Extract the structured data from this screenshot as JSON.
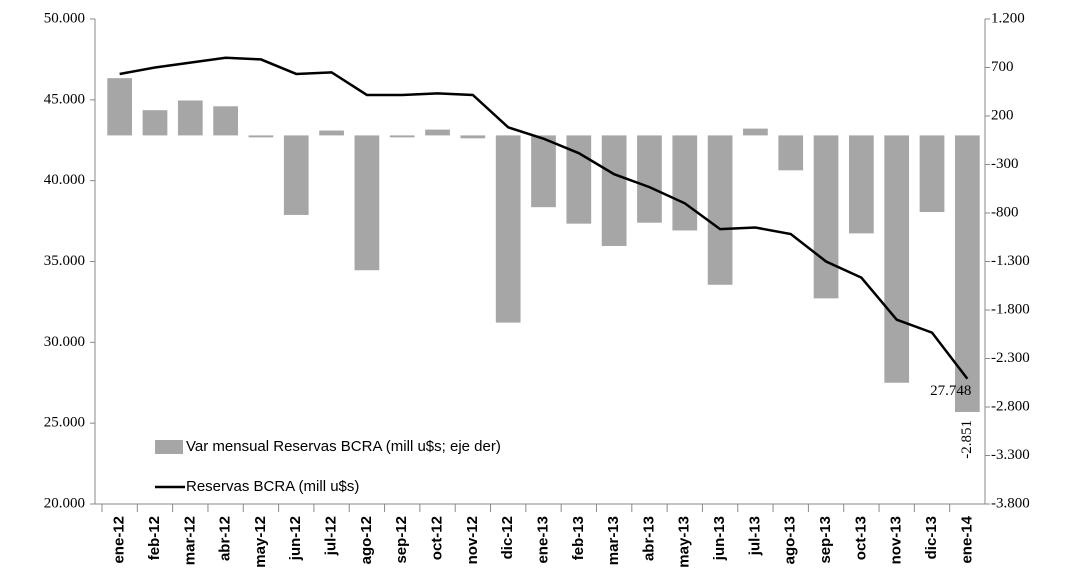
{
  "chart_data": {
    "type": "combo",
    "categories": [
      "ene-12",
      "feb-12",
      "mar-12",
      "abr-12",
      "may-12",
      "jun-12",
      "jul-12",
      "ago-12",
      "sep-12",
      "oct-12",
      "nov-12",
      "dic-12",
      "ene-13",
      "feb-13",
      "mar-13",
      "abr-13",
      "may-13",
      "jun-13",
      "jul-13",
      "ago-13",
      "sep-13",
      "oct-13",
      "nov-13",
      "dic-13",
      "ene-14"
    ],
    "series": [
      {
        "name": "Var mensual Reservas BCRA (mill u$s; eje der)",
        "type": "bar",
        "axis": "y2",
        "color": "#a6a6a6",
        "values": [
          590,
          260,
          360,
          300,
          -20,
          -820,
          50,
          -1390,
          -20,
          60,
          -30,
          -1930,
          -740,
          -910,
          -1140,
          -900,
          -980,
          -1540,
          70,
          -360,
          -1680,
          -1010,
          -2550,
          -790,
          -2851
        ],
        "value_labels": [
          null,
          null,
          null,
          null,
          null,
          null,
          null,
          null,
          null,
          null,
          null,
          null,
          null,
          null,
          null,
          null,
          null,
          null,
          null,
          null,
          null,
          null,
          null,
          null,
          "-2.851"
        ]
      },
      {
        "name": "Reservas BCRA (mill u$s)",
        "type": "line",
        "axis": "y",
        "color": "#000000",
        "values": [
          46600,
          47000,
          47300,
          47600,
          47500,
          46600,
          46700,
          45300,
          45300,
          45400,
          45300,
          43300,
          42600,
          41700,
          40400,
          39600,
          38600,
          37000,
          37100,
          36700,
          35000,
          34000,
          31400,
          30600,
          27748
        ],
        "value_labels": [
          null,
          null,
          null,
          null,
          null,
          null,
          null,
          null,
          null,
          null,
          null,
          null,
          null,
          null,
          null,
          null,
          null,
          null,
          null,
          null,
          null,
          null,
          null,
          null,
          "27.748"
        ]
      }
    ],
    "ylim": [
      20000,
      50000
    ],
    "yticks": [
      {
        "value": 20000,
        "label": "20.000"
      },
      {
        "value": 25000,
        "label": "25.000"
      },
      {
        "value": 30000,
        "label": "30.000"
      },
      {
        "value": 35000,
        "label": "35.000"
      },
      {
        "value": 40000,
        "label": "40.000"
      },
      {
        "value": 45000,
        "label": "45.000"
      },
      {
        "value": 50000,
        "label": "50.000"
      }
    ],
    "y2lim": [
      -3800,
      1200
    ],
    "y2ticks": [
      {
        "value": 1200,
        "label": "1.200"
      },
      700,
      200,
      -300,
      -800,
      {
        "value": -1300,
        "label": "-1.300"
      },
      {
        "value": -1800,
        "label": "-1.800"
      },
      {
        "value": -2300,
        "label": "-2.300"
      },
      {
        "value": -2800,
        "label": "-2.800"
      },
      {
        "value": -3300,
        "label": "-3.300"
      },
      {
        "value": -3800,
        "label": "-3.800"
      }
    ],
    "y2_negative_color": "#ff0000",
    "grid": false,
    "legend": "lower left"
  }
}
